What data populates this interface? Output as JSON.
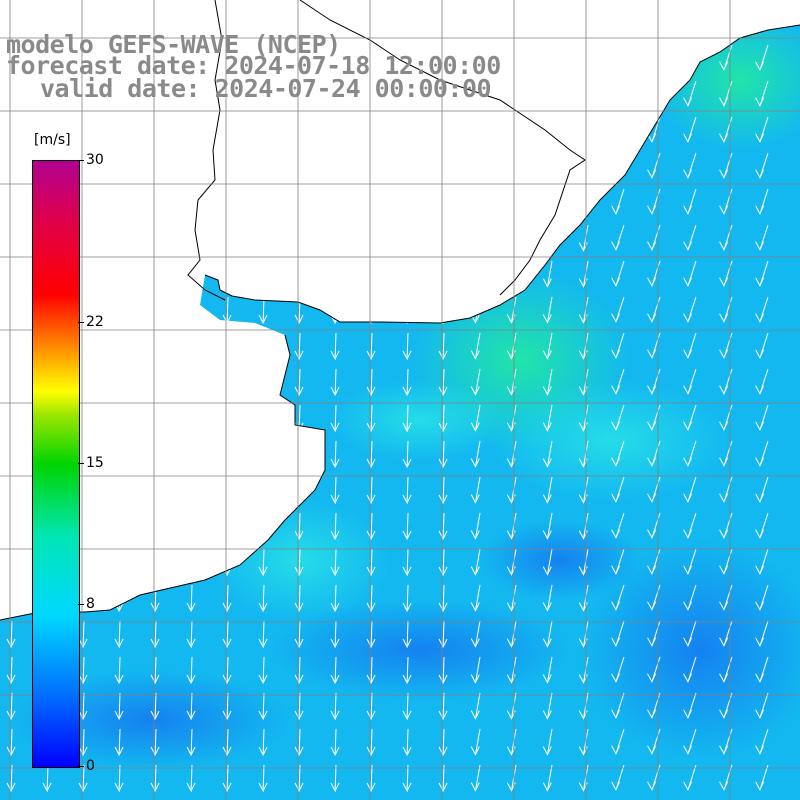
{
  "title": {
    "line1": "modelo GEFS-WAVE (NCEP)",
    "line2": "forecast date: 2024-07-18 12:00:00",
    "line3": "valid date: 2024-07-24 00:00:00"
  },
  "colorbar": {
    "unit": "[m/s]",
    "ticks": [
      {
        "label": "30",
        "value": 30
      },
      {
        "label": "22",
        "value": 22
      },
      {
        "label": "15",
        "value": 15
      },
      {
        "label": "8",
        "value": 8
      },
      {
        "label": "0",
        "value": 0
      }
    ],
    "range": [
      0,
      30
    ]
  },
  "colors": {
    "ocean_base": "#13b8f0",
    "ocean_light": "#1fe0e8",
    "ocean_green": "#25e6a8",
    "ocean_dark": "#1a8ef0",
    "land": "#ffffff",
    "coast": "#000000",
    "grid": "#808080",
    "arrow": "#ffffff"
  },
  "map": {
    "field": "wind speed",
    "wind_direction": "predominantly from north (southward arrows)"
  }
}
